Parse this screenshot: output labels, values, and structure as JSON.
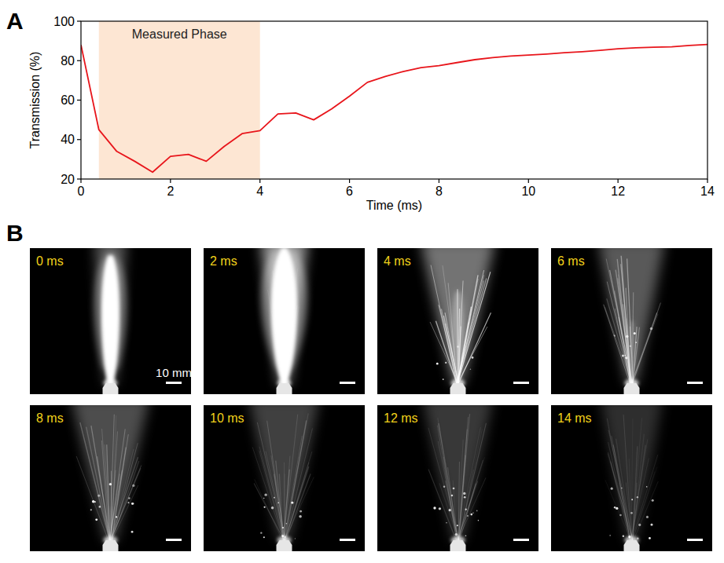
{
  "chart_data": {
    "type": "line",
    "xlabel": "Time (ms)",
    "ylabel": "Transmission (%)",
    "x": [
      0,
      0.4,
      0.8,
      1.2,
      1.6,
      2.0,
      2.4,
      2.8,
      3.2,
      3.6,
      4.0,
      4.4,
      4.8,
      5.2,
      5.6,
      6.0,
      6.4,
      6.8,
      7.2,
      7.6,
      8.0,
      8.4,
      8.8,
      9.2,
      9.6,
      10.0,
      10.4,
      10.8,
      11.2,
      11.6,
      12.0,
      12.4,
      12.8,
      13.2,
      13.6,
      14.0
    ],
    "series": [
      {
        "color": "#e8151b",
        "values": [
          88,
          45,
          34,
          29,
          23.5,
          31.5,
          32.5,
          29,
          36.5,
          43,
          44.5,
          53,
          53.5,
          50,
          55.5,
          62,
          69,
          72,
          74.5,
          76.5,
          77.5,
          79,
          80.5,
          81.5,
          82.3,
          82.8,
          83.3,
          84,
          84.5,
          85.2,
          86,
          86.5,
          86.8,
          87,
          87.7,
          88.2
        ]
      }
    ],
    "xlim": [
      0,
      14
    ],
    "xticks": [
      0,
      2,
      4,
      6,
      8,
      10,
      12,
      14
    ],
    "ylim": [
      20,
      100
    ],
    "yticks": [
      20,
      40,
      60,
      80,
      100
    ],
    "grid": false,
    "annotations": [
      {
        "text": "Measured Phase",
        "x0": 0.4,
        "x1": 4.0,
        "color": "#fde6d3"
      }
    ]
  },
  "panel_labels": [
    "A",
    "B"
  ],
  "image_panel": {
    "frames": [
      "0 ms",
      "2 ms",
      "4 ms",
      "6 ms",
      "8 ms",
      "10 ms",
      "12 ms",
      "14 ms"
    ],
    "scale_bar_label": "10 mm",
    "label_color": "#f2d21b"
  }
}
